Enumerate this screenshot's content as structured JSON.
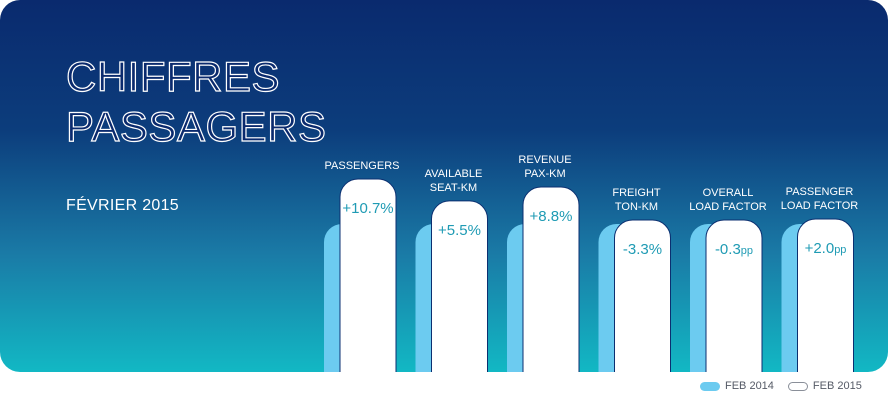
{
  "header": {
    "title_line1": "CHIFFRES",
    "title_line2": "PASSAGERS",
    "date": "FÉVRIER 2015"
  },
  "colors": {
    "background_top": "#0a2a6e",
    "background_bottom": "#12b8c4",
    "feb_2014": "#6ccbf0",
    "feb_2015": "#ffffff",
    "value_text": "#1f9bb4"
  },
  "chart_data": {
    "type": "bar",
    "categories": [
      "PASSENGERS",
      "AVAILABLE\nSEAT-KM",
      "REVENUE\nPAX-KM",
      "FREIGHT\nTON-KM",
      "OVERALL\nLOAD FACTOR",
      "PASSENGER\nLOAD FACTOR"
    ],
    "change_labels": [
      "+10.7%",
      "+5.5%",
      "+8.8%",
      "-3.3%",
      "-0.3pp",
      "+2.0pp"
    ],
    "change_values": [
      10.7,
      5.5,
      8.8,
      -3.3,
      -0.3,
      2.0
    ],
    "change_units": [
      "%",
      "%",
      "%",
      "%",
      "pp",
      "pp"
    ],
    "legend": [
      "FEB 2014",
      "FEB 2015"
    ]
  }
}
